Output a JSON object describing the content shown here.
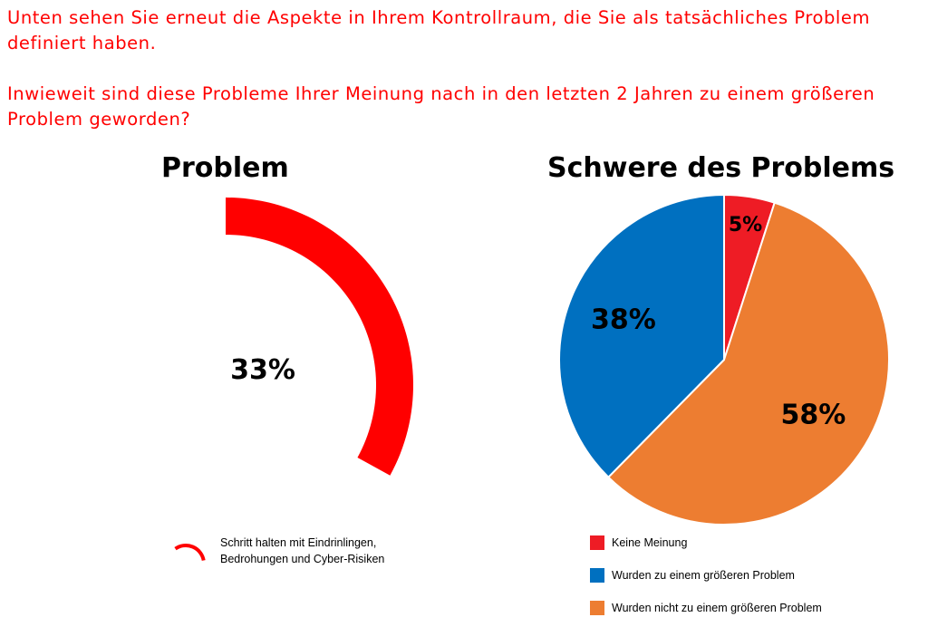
{
  "intro": {
    "line1": "Unten sehen Sie erneut die Aspekte in Ihrem Kontrollraum, die Sie als tatsächliches Problem definiert haben.",
    "line2": "Inwieweit sind diese Probleme Ihrer Meinung nach in den letzten 2 Jahren zu einem größeren Problem geworden?"
  },
  "chart_data": [
    {
      "type": "pie",
      "title": "Problem",
      "series": [
        {
          "name": "Schritt halten mit Eindrinlingen, Bedrohungen und Cyber-Risiken",
          "value": 33,
          "color": "#ff0000"
        }
      ],
      "data_labels": [
        "33%"
      ],
      "legend": {
        "position": "bottom",
        "lines": [
          "Schritt halten mit Eindrinlingen,",
          "Bedrohungen und Cyber-Risiken"
        ]
      }
    },
    {
      "type": "pie",
      "title": "Schwere des Problems",
      "slices": [
        {
          "label": "Keine Meinung",
          "value": 5,
          "color": "#ee1c25"
        },
        {
          "label": "Wurden nicht zu einem größeren Problem",
          "value": 58,
          "color": "#ed7d31"
        },
        {
          "label": "Wurden zu einem größeren Problem",
          "value": 38,
          "color": "#0070c0"
        }
      ],
      "data_labels": [
        "5%",
        "58%",
        "38%"
      ],
      "legend": {
        "position": "bottom",
        "entries": [
          "Keine Meinung",
          "Wurden zu einem größeren Problem",
          "Wurden nicht zu einem größeren Problem"
        ]
      }
    }
  ]
}
